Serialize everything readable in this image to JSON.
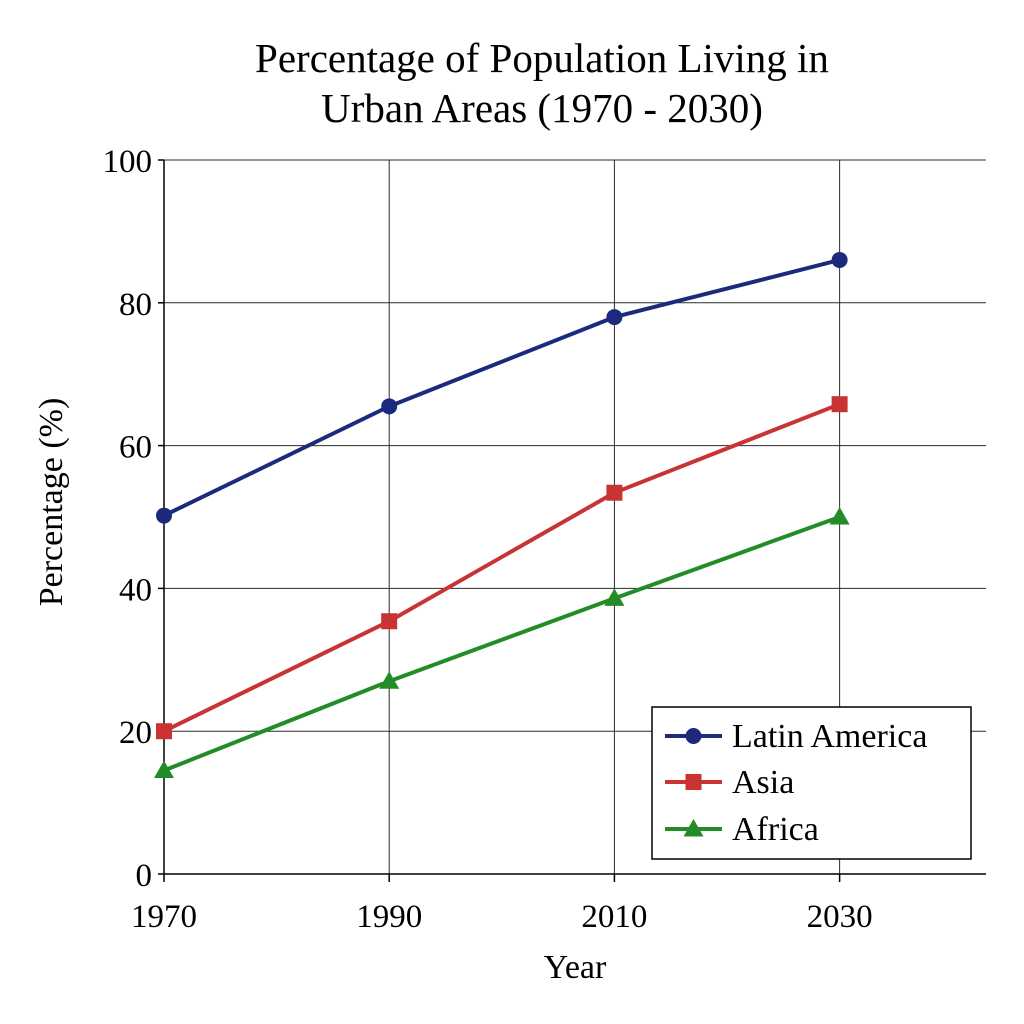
{
  "chart_data": {
    "type": "line",
    "title": [
      "Percentage of Population Living in",
      "Urban Areas (1970 - 2030)"
    ],
    "xlabel": "Year",
    "ylabel": "Percentage (%)",
    "x": [
      1970,
      1990,
      2010,
      2030
    ],
    "x_tick_labels": [
      "1970",
      "1990",
      "2010",
      "2030"
    ],
    "xlim": [
      1970,
      2043
    ],
    "ylim": [
      0,
      100
    ],
    "y_ticks": [
      0,
      20,
      40,
      60,
      80,
      100
    ],
    "y_tick_labels": [
      "0",
      "20",
      "40",
      "60",
      "80",
      "100"
    ],
    "grid": true,
    "legend_position": "bottom-right",
    "series": [
      {
        "name": "Latin America",
        "values": [
          50.2,
          65.5,
          78,
          86
        ],
        "color": "#1b2a7c",
        "marker": "circle"
      },
      {
        "name": "Asia",
        "values": [
          20,
          35.4,
          53.4,
          65.8
        ],
        "color": "#c93333",
        "marker": "square"
      },
      {
        "name": "Africa",
        "values": [
          14.5,
          27,
          38.6,
          50
        ],
        "color": "#238c27",
        "marker": "triangle"
      }
    ]
  }
}
